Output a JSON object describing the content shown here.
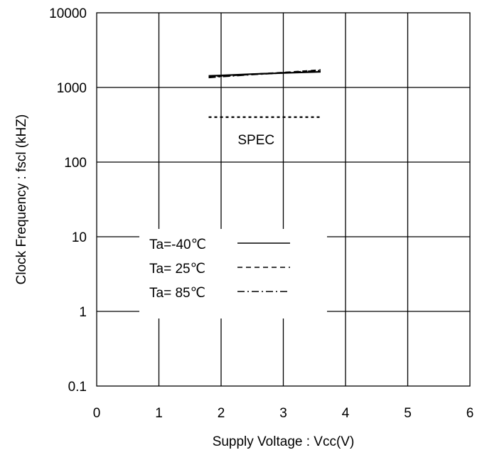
{
  "chart_data": {
    "type": "line",
    "title": "",
    "xlabel": "Supply Voltage : Vcc(V)",
    "ylabel": "Clock Frequency : fscl (kHZ)",
    "xlim": [
      0,
      6
    ],
    "ylim": [
      0.1,
      10000
    ],
    "yscale": "log",
    "grid": true,
    "x_ticks": [
      "0",
      "1",
      "2",
      "3",
      "4",
      "5",
      "6"
    ],
    "y_ticks": [
      "0.1",
      "1",
      "10",
      "100",
      "1000",
      "10000"
    ],
    "legend_position": "lower-left",
    "series": [
      {
        "name": "Ta=-40℃",
        "style": "solid",
        "x": [
          1.8,
          2.0,
          2.5,
          3.0,
          3.6
        ],
        "y": [
          1430,
          1450,
          1510,
          1560,
          1620
        ]
      },
      {
        "name": "Ta= 25℃",
        "style": "dashed",
        "x": [
          1.8,
          2.0,
          2.5,
          3.0,
          3.6
        ],
        "y": [
          1390,
          1420,
          1500,
          1580,
          1710
        ]
      },
      {
        "name": "Ta= 85℃",
        "style": "dashdot",
        "x": [
          1.8,
          2.0,
          2.5,
          3.0,
          3.6
        ],
        "y": [
          1360,
          1400,
          1490,
          1570,
          1680
        ]
      }
    ],
    "spec": {
      "label": "SPEC",
      "style": "dotted",
      "x": [
        1.8,
        3.6
      ],
      "y": 400
    }
  }
}
